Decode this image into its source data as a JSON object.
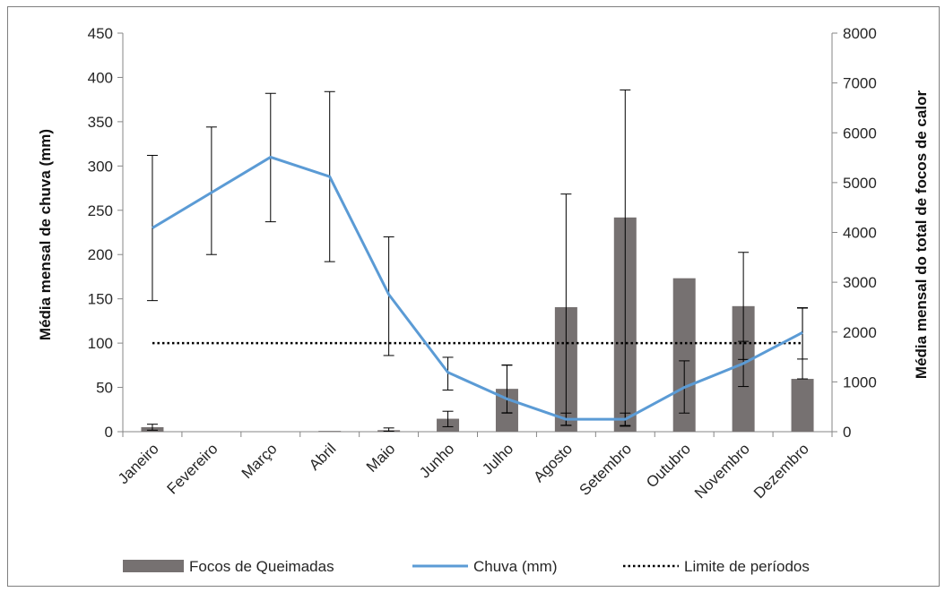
{
  "chart_data": {
    "type": "bar",
    "categories": [
      "Janeiro",
      "Fevereiro",
      "Março",
      "Abril",
      "Maio",
      "Junho",
      "Julho",
      "Agosto",
      "Setembro",
      "Outubro",
      "Novembro",
      "Dezembro"
    ],
    "ylabel_left": "Média mensal de chuva (mm)",
    "ylabel_right": "Média mensal do total de focos de calor",
    "ylim_left": [
      0,
      450
    ],
    "ylim_right": [
      0,
      8000
    ],
    "yticks_left": [
      0,
      50,
      100,
      150,
      200,
      250,
      300,
      350,
      400,
      450
    ],
    "yticks_right": [
      0,
      1000,
      2000,
      3000,
      4000,
      5000,
      6000,
      7000,
      8000
    ],
    "series": [
      {
        "name": "Focos de Queimadas",
        "kind": "bar",
        "axis": "right",
        "color": "#767171",
        "values": [
          90,
          0,
          0,
          15,
          30,
          260,
          860,
          2500,
          4300,
          3080,
          2520,
          1060
        ],
        "error_upper": [
          150,
          null,
          null,
          null,
          75,
          410,
          1340,
          4770,
          6860,
          null,
          3600,
          2480
        ],
        "error_lower": [
          30,
          null,
          null,
          null,
          10,
          100,
          380,
          130,
          110,
          null,
          1450,
          null
        ]
      },
      {
        "name": "Chuva (mm)",
        "kind": "line",
        "axis": "left",
        "color": "#5B9BD5",
        "values": [
          230,
          270,
          310,
          288,
          155,
          67,
          37,
          14,
          14,
          50,
          77,
          112
        ],
        "error_upper": [
          312,
          344,
          382,
          384,
          220,
          84,
          75,
          21,
          21,
          80,
          102,
          140
        ],
        "error_lower": [
          148,
          200,
          237,
          192,
          86,
          47,
          21,
          7,
          7,
          21,
          51,
          82
        ]
      },
      {
        "name": "Limite de períodos",
        "kind": "dotted-line",
        "axis": "left",
        "color": "#000000",
        "value": 100
      }
    ],
    "legend_position": "bottom",
    "grid": false
  }
}
